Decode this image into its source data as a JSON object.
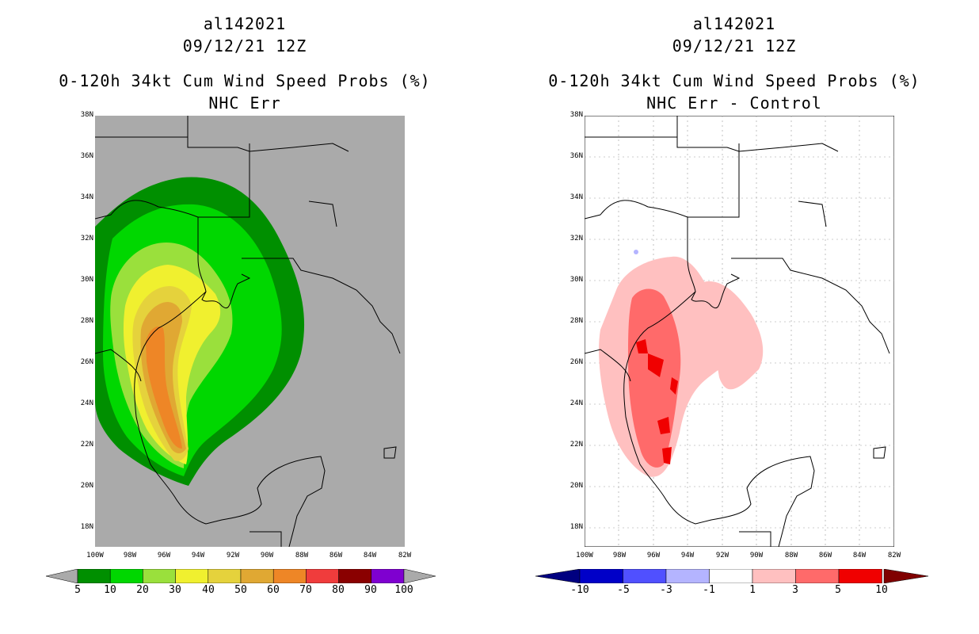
{
  "left": {
    "title_line1": "al142021",
    "title_line2": "09/12/21 12Z",
    "title_line3": "0-120h 34kt Cum Wind Speed Probs (%)",
    "title_line4": "NHC Err",
    "colorbar_labels": [
      "5",
      "10",
      "20",
      "30",
      "40",
      "50",
      "60",
      "70",
      "80",
      "90",
      "100"
    ],
    "colorbar_colors": [
      "#008f00",
      "#00d700",
      "#9ae03c",
      "#f0f02f",
      "#e5d23c",
      "#e0a833",
      "#ee8626",
      "#f03c3c",
      "#8a0000",
      "#7f00d0"
    ]
  },
  "right": {
    "title_line1": "al142021",
    "title_line2": "09/12/21 12Z",
    "title_line3": "0-120h 34kt Cum Wind Speed Probs (%)",
    "title_line4": "NHC Err - Control",
    "colorbar_labels": [
      "-10",
      "-5",
      "-3",
      "-1",
      "1",
      "3",
      "5",
      "10"
    ],
    "colorbar_colors": [
      "#0000c8",
      "#5050ff",
      "#b4b4ff",
      "#ffffff",
      "#ffc0c0",
      "#ff6a6a",
      "#f00000"
    ]
  },
  "axes": {
    "lat_ticks": [
      "38N",
      "36N",
      "34N",
      "32N",
      "30N",
      "28N",
      "26N",
      "24N",
      "22N",
      "20N",
      "18N"
    ],
    "lon_ticks": [
      "100W",
      "98W",
      "96W",
      "94W",
      "92W",
      "90W",
      "88W",
      "86W",
      "84W",
      "82W"
    ]
  },
  "colors": {
    "land_bg": "#aaaaaa",
    "white_bg": "#ffffff"
  }
}
